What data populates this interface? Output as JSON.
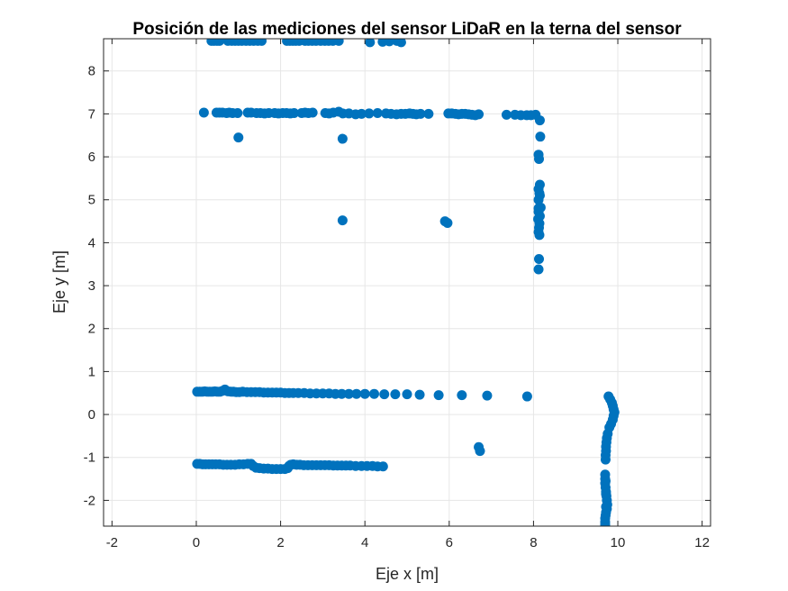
{
  "chart_data": {
    "type": "scatter",
    "title": "Posición de las mediciones del sensor LiDaR en la terna del sensor",
    "xlabel": "Eje x [m]",
    "ylabel": "Eje y [m]",
    "xlim": [
      -2.2,
      12.2
    ],
    "ylim": [
      -2.6,
      8.75
    ],
    "xticks": [
      -2,
      0,
      2,
      4,
      6,
      8,
      10,
      12
    ],
    "xtick_labels": [
      "-2",
      "0",
      "2",
      "4",
      "6",
      "8",
      "10",
      "12"
    ],
    "yticks": [
      -2,
      -1,
      0,
      1,
      2,
      3,
      4,
      5,
      6,
      7,
      8
    ],
    "ytick_labels": [
      "-2",
      "-1",
      "0",
      "1",
      "2",
      "3",
      "4",
      "5",
      "6",
      "7",
      "8"
    ],
    "grid": true,
    "marker_color": "#0072BD",
    "series": [
      {
        "x": [
          0.36,
          0.42,
          0.49,
          0.55,
          0.75,
          0.84,
          0.92,
          1.0,
          1.08,
          1.18,
          1.27,
          1.36,
          1.46,
          1.55,
          2.15,
          2.22,
          2.29,
          2.36,
          2.44,
          2.58,
          2.66,
          2.75,
          2.84,
          2.95,
          3.05,
          3.14,
          3.24,
          3.38,
          4.12,
          4.42,
          4.58,
          4.76,
          4.86,
          0.18,
          0.48,
          0.55,
          0.62,
          0.72,
          0.78,
          0.86,
          0.98,
          1.22,
          1.3,
          1.43,
          1.52,
          1.62,
          1.72,
          1.86,
          1.95,
          2.05,
          2.14,
          2.23,
          2.32,
          2.5,
          2.58,
          2.66,
          2.76,
          3.06,
          3.15,
          3.25,
          3.38,
          3.48,
          3.62,
          3.78,
          3.92,
          4.1,
          4.3,
          4.5,
          4.62,
          4.75,
          4.86,
          4.96,
          5.06,
          5.14,
          5.22,
          5.32,
          5.51,
          5.98,
          6.06,
          6.15,
          6.22,
          6.3,
          6.38,
          6.46,
          6.54,
          6.62,
          6.7,
          7.36,
          7.56,
          7.7,
          7.84,
          7.94,
          8.05,
          8.15,
          1.0,
          3.47,
          8.16,
          8.12,
          8.13,
          8.15,
          8.12,
          8.15,
          8.17,
          8.12,
          8.15,
          8.11,
          8.14,
          8.12,
          8.14,
          8.13,
          8.12,
          8.14,
          8.12,
          8.13,
          8.12,
          3.47,
          5.9,
          5.96,
          0.02,
          0.08,
          0.14,
          0.2,
          0.26,
          0.32,
          0.38,
          0.44,
          0.5,
          0.56,
          0.62,
          0.68,
          0.75,
          0.82,
          0.88,
          0.95,
          1.02,
          1.1,
          1.2,
          1.3,
          1.4,
          1.5,
          1.6,
          1.7,
          1.8,
          1.9,
          2.0,
          2.1,
          2.2,
          2.3,
          2.42,
          2.56,
          2.7,
          2.85,
          3.0,
          3.15,
          3.3,
          3.45,
          3.62,
          3.8,
          4.0,
          4.22,
          4.46,
          4.72,
          5.0,
          5.3,
          5.75,
          6.3,
          6.9,
          7.85,
          0.02,
          0.08,
          0.15,
          0.22,
          0.3,
          0.38,
          0.46,
          0.55,
          0.64,
          0.73,
          0.82,
          0.92,
          1.02,
          1.12,
          1.22,
          1.3,
          1.35,
          1.42,
          1.5,
          1.6,
          1.7,
          1.8,
          1.9,
          2.0,
          2.1,
          2.17,
          2.2,
          2.24,
          2.3,
          2.38,
          2.46,
          2.55,
          2.65,
          2.75,
          2.85,
          2.95,
          3.05,
          3.15,
          3.25,
          3.35,
          3.45,
          3.55,
          3.65,
          3.78,
          3.92,
          4.05,
          4.18,
          4.3,
          4.43,
          6.7,
          6.73,
          9.78,
          9.82,
          9.86,
          9.88,
          9.9,
          9.92,
          9.9,
          9.88,
          9.84,
          9.8,
          9.76,
          9.74,
          9.73,
          9.72,
          9.72,
          9.71,
          9.71,
          9.7,
          9.7,
          9.7,
          9.71,
          9.72,
          9.73,
          9.74,
          9.75,
          9.74,
          9.72,
          9.71,
          9.7,
          9.7,
          9.7,
          9.7,
          9.71,
          9.72,
          9.72
        ],
        "y": [
          8.7,
          8.7,
          8.7,
          8.7,
          8.7,
          8.7,
          8.7,
          8.7,
          8.7,
          8.7,
          8.7,
          8.7,
          8.7,
          8.7,
          8.7,
          8.7,
          8.7,
          8.7,
          8.7,
          8.7,
          8.7,
          8.7,
          8.7,
          8.7,
          8.7,
          8.7,
          8.7,
          8.7,
          8.67,
          8.68,
          8.69,
          8.7,
          8.67,
          7.03,
          7.03,
          7.03,
          7.03,
          7.02,
          7.03,
          7.02,
          7.02,
          7.03,
          7.03,
          7.02,
          7.02,
          7.01,
          7.02,
          7.02,
          7.01,
          7.02,
          7.02,
          7.01,
          7.02,
          7.02,
          7.03,
          7.02,
          7.03,
          7.02,
          7.01,
          7.03,
          7.05,
          7.01,
          7.01,
          6.99,
          7.0,
          7.01,
          7.02,
          7.01,
          7.0,
          6.99,
          7.0,
          7.0,
          7.01,
          7.0,
          6.99,
          7.0,
          7.0,
          7.01,
          7.01,
          7.0,
          6.99,
          7.0,
          7.0,
          6.99,
          6.98,
          6.97,
          6.99,
          6.98,
          6.98,
          6.97,
          6.97,
          6.97,
          6.98,
          6.85,
          6.45,
          6.42,
          6.47,
          6.05,
          5.95,
          5.35,
          5.25,
          5.1,
          4.82,
          4.72,
          4.62,
          4.55,
          4.45,
          4.25,
          4.18,
          3.62,
          3.38,
          5.15,
          5.0,
          4.35,
          4.8,
          4.52,
          4.5,
          4.46,
          0.53,
          0.53,
          0.53,
          0.54,
          0.53,
          0.53,
          0.53,
          0.54,
          0.53,
          0.53,
          0.55,
          0.58,
          0.54,
          0.53,
          0.53,
          0.52,
          0.52,
          0.53,
          0.52,
          0.52,
          0.52,
          0.52,
          0.51,
          0.51,
          0.51,
          0.51,
          0.51,
          0.5,
          0.5,
          0.5,
          0.5,
          0.5,
          0.49,
          0.49,
          0.49,
          0.49,
          0.48,
          0.48,
          0.48,
          0.48,
          0.48,
          0.48,
          0.47,
          0.47,
          0.47,
          0.46,
          0.45,
          0.45,
          0.44,
          0.42,
          -1.15,
          -1.15,
          -1.16,
          -1.16,
          -1.16,
          -1.16,
          -1.16,
          -1.16,
          -1.17,
          -1.17,
          -1.17,
          -1.17,
          -1.16,
          -1.16,
          -1.15,
          -1.15,
          -1.2,
          -1.24,
          -1.25,
          -1.26,
          -1.26,
          -1.27,
          -1.27,
          -1.27,
          -1.27,
          -1.25,
          -1.2,
          -1.17,
          -1.16,
          -1.17,
          -1.17,
          -1.18,
          -1.18,
          -1.18,
          -1.18,
          -1.18,
          -1.18,
          -1.18,
          -1.19,
          -1.19,
          -1.19,
          -1.19,
          -1.19,
          -1.2,
          -1.2,
          -1.2,
          -1.2,
          -1.21,
          -1.21,
          -0.76,
          -0.85,
          0.42,
          0.35,
          0.27,
          0.2,
          0.12,
          0.05,
          -0.03,
          -0.12,
          -0.22,
          -0.3,
          -0.45,
          -0.55,
          -0.65,
          -0.75,
          -0.85,
          -0.95,
          -1.05,
          -1.4,
          -1.5,
          -1.6,
          -1.7,
          -1.8,
          -1.9,
          -2.0,
          -2.1,
          -2.2,
          -2.28,
          -2.35,
          -2.42,
          -2.5,
          -2.56,
          -2.6,
          -1.55,
          -1.85,
          -2.15
        ]
      }
    ]
  }
}
